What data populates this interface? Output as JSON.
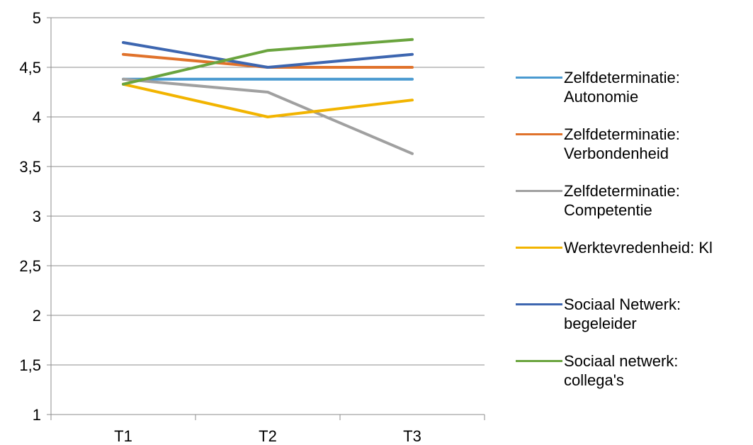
{
  "chart_data": {
    "type": "line",
    "title": "",
    "xlabel": "",
    "ylabel": "",
    "categories": [
      "T1",
      "T2",
      "T3"
    ],
    "ylim": [
      1,
      5
    ],
    "yticks": [
      1,
      1.5,
      2,
      2.5,
      3,
      3.5,
      4,
      4.5,
      5
    ],
    "ytick_labels": [
      "1",
      "1,5",
      "2",
      "2,5",
      "3",
      "3,5",
      "4",
      "4,5",
      "5"
    ],
    "grid": "horizontal",
    "legend_position": "right",
    "series": [
      {
        "name": "Zelfdeterminatie:\nAutonomie",
        "color": "#4a9ad0",
        "values": [
          4.38,
          4.38,
          4.38
        ]
      },
      {
        "name": "Zelfdeterminatie:\nVerbondenheid",
        "color": "#e0722b",
        "values": [
          4.63,
          4.5,
          4.5
        ]
      },
      {
        "name": "Zelfdeterminatie:\nCompetentie",
        "color": "#a0a0a0",
        "values": [
          4.38,
          4.25,
          3.63
        ]
      },
      {
        "name": "Werktevredenheid: Kl",
        "color": "#f2b400",
        "values": [
          4.33,
          4.0,
          4.17
        ]
      },
      {
        "name": "Sociaal Netwerk:\nbegeleider",
        "color": "#3d66b0",
        "values": [
          4.75,
          4.5,
          4.63
        ]
      },
      {
        "name": "Sociaal netwerk:\ncollega's",
        "color": "#6aa43e",
        "values": [
          4.33,
          4.67,
          4.78
        ]
      }
    ]
  }
}
